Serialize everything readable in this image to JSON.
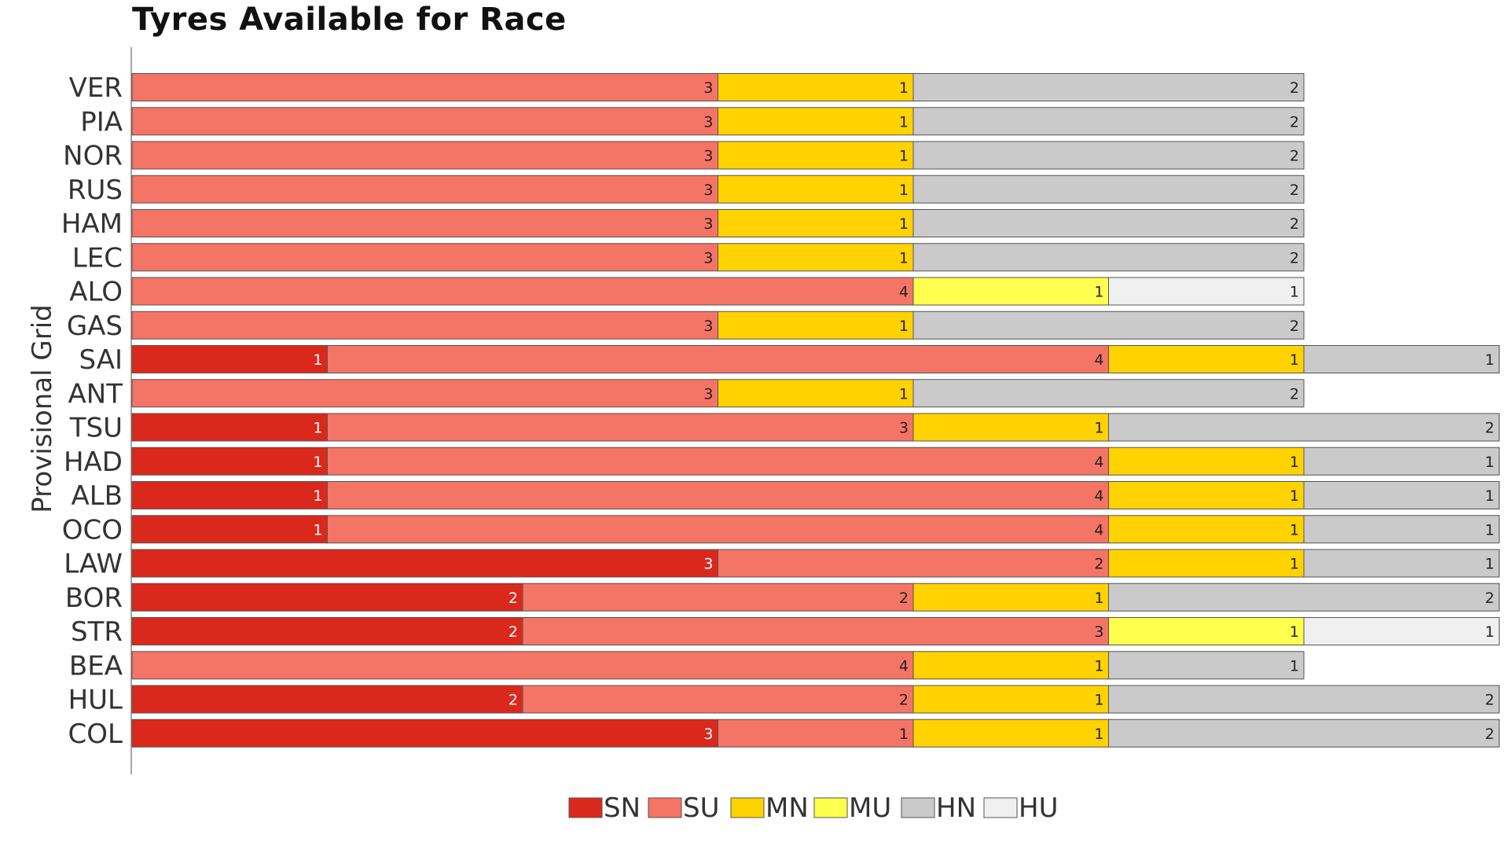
{
  "chart_data": {
    "type": "bar",
    "orientation": "horizontal",
    "stacked": true,
    "title": "Tyres Available for Race",
    "ylabel": "Provisional Grid",
    "xlabel": "",
    "grid": false,
    "legend_position": "bottom",
    "categories": [
      "VER",
      "PIA",
      "NOR",
      "RUS",
      "HAM",
      "LEC",
      "ALO",
      "GAS",
      "SAI",
      "ANT",
      "TSU",
      "HAD",
      "ALB",
      "OCO",
      "LAW",
      "BOR",
      "STR",
      "BEA",
      "HUL",
      "COL"
    ],
    "series": [
      {
        "name": "SN",
        "color": "#da291c",
        "values": [
          0,
          0,
          0,
          0,
          0,
          0,
          0,
          0,
          1,
          0,
          1,
          1,
          1,
          1,
          3,
          2,
          2,
          0,
          2,
          3
        ]
      },
      {
        "name": "SU",
        "color": "#f47466",
        "values": [
          3,
          3,
          3,
          3,
          3,
          3,
          4,
          3,
          4,
          3,
          3,
          4,
          4,
          4,
          2,
          2,
          3,
          4,
          2,
          1
        ]
      },
      {
        "name": "MN",
        "color": "#ffd200",
        "values": [
          1,
          1,
          1,
          1,
          1,
          1,
          0,
          1,
          1,
          1,
          1,
          1,
          1,
          1,
          1,
          1,
          0,
          1,
          1,
          1
        ]
      },
      {
        "name": "MU",
        "color": "#ffff4d",
        "values": [
          0,
          0,
          0,
          0,
          0,
          0,
          1,
          0,
          0,
          0,
          0,
          0,
          0,
          0,
          0,
          0,
          1,
          0,
          0,
          0
        ]
      },
      {
        "name": "HN",
        "color": "#cacaca",
        "values": [
          2,
          2,
          2,
          2,
          2,
          2,
          0,
          2,
          1,
          2,
          2,
          1,
          1,
          1,
          1,
          2,
          0,
          1,
          2,
          2
        ]
      },
      {
        "name": "HU",
        "color": "#f0f0f0",
        "values": [
          0,
          0,
          0,
          0,
          0,
          0,
          1,
          0,
          0,
          0,
          0,
          0,
          0,
          0,
          0,
          0,
          1,
          0,
          0,
          0
        ]
      }
    ]
  }
}
